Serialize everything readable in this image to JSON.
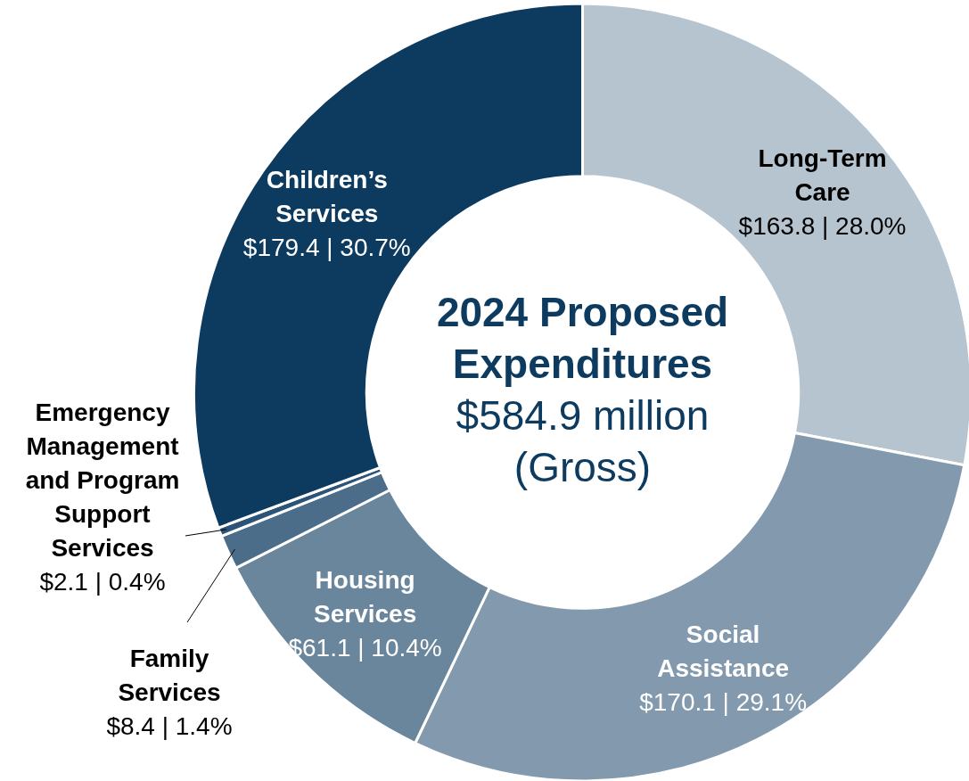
{
  "chart_data": {
    "type": "donut",
    "title": "2024 Proposed Expenditures",
    "subtitle": "$584.9 million (Gross)",
    "categories": [
      "Long-Term Care",
      "Social Assistance",
      "Housing Services",
      "Family Services",
      "Emergency Management and Program Support Services",
      "Children’s Services"
    ],
    "values": [
      163.8,
      170.1,
      61.1,
      8.4,
      2.1,
      179.4
    ],
    "value_labels": [
      "$163.8 | 28.0%",
      "$170.1 | 29.1%",
      "$61.1 | 10.4%",
      "$8.4 | 1.4%",
      "$2.1 | 0.4%",
      "$179.4 | 30.7%"
    ],
    "colors": [
      "#b6c4d0",
      "#8399ae",
      "#6a869c",
      "#4c6d89",
      "#2c5378",
      "#0d3a5f"
    ],
    "legend": false
  }
}
